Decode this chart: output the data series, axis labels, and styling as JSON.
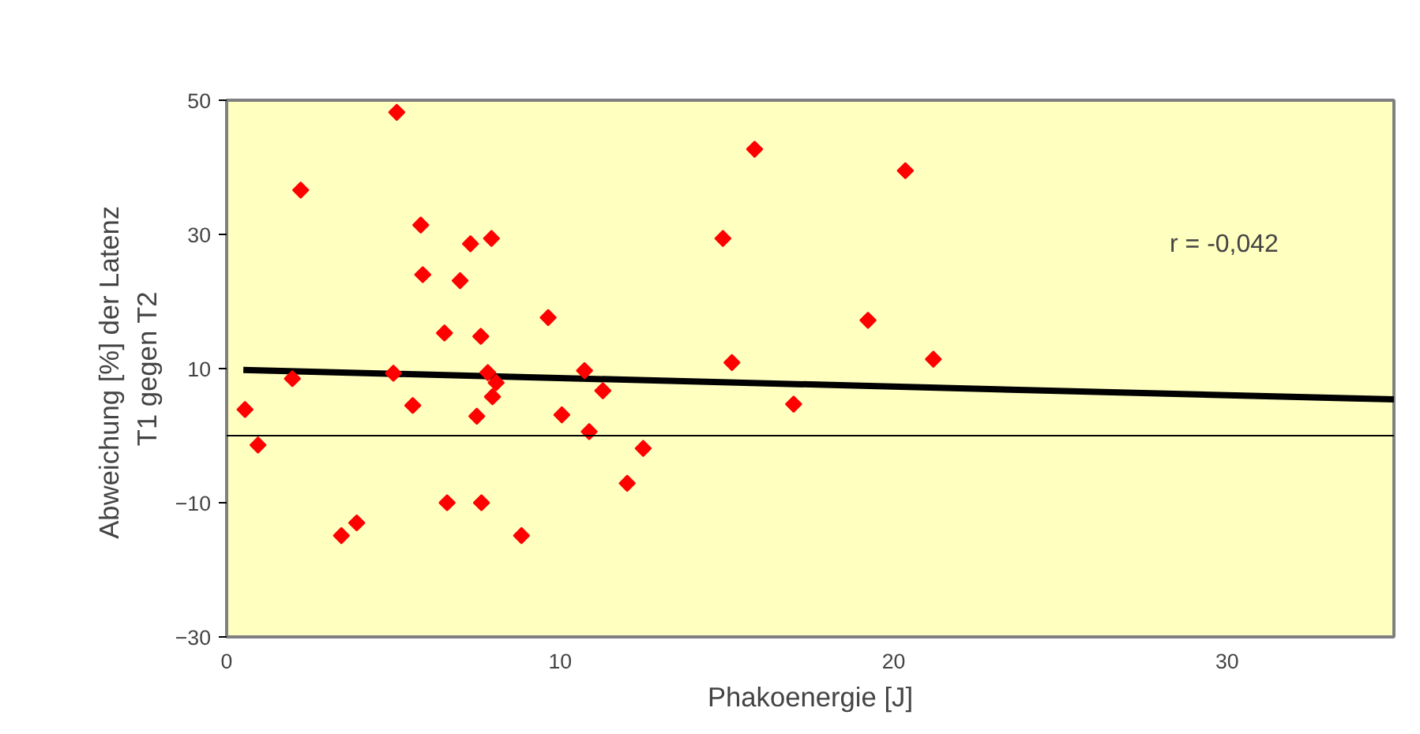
{
  "chart_data": {
    "type": "scatter",
    "xlabel": "Phakoenergie [J]",
    "ylabel": "Abweichung [%] der  Latenz\nT1 gegen T2",
    "annotations": [
      "r = -0,042"
    ],
    "xlim": [
      0,
      35
    ],
    "ylim": [
      -30,
      50
    ],
    "xticks": [
      0,
      10,
      20,
      30
    ],
    "yticks": [
      -30,
      -10,
      10,
      30,
      50
    ],
    "grid": false,
    "ref_lines": [
      {
        "axis": "y",
        "value": 0,
        "color": "#000000"
      }
    ],
    "series": [
      {
        "color": "#ff0000",
        "marker": "diamond",
        "x": [
          0.55,
          0.94,
          1.97,
          2.22,
          3.44,
          3.9,
          5.1,
          5.0,
          5.58,
          5.82,
          5.88,
          6.53,
          6.61,
          7.0,
          7.31,
          7.62,
          7.64,
          7.5,
          7.94,
          7.83,
          8.08,
          7.97,
          8.84,
          9.64,
          10.05,
          10.73,
          10.87,
          11.28,
          12.01,
          12.49,
          15.83,
          20.35,
          14.88,
          19.23,
          15.15,
          21.19,
          17.0
        ],
        "values": [
          3.9,
          -1.4,
          8.5,
          36.6,
          -14.9,
          -13.0,
          48.2,
          9.3,
          4.5,
          31.4,
          24.0,
          15.3,
          -10.0,
          23.1,
          28.6,
          14.8,
          -10.0,
          2.9,
          29.4,
          9.4,
          7.9,
          5.8,
          -14.9,
          17.6,
          3.1,
          9.7,
          0.6,
          6.7,
          -7.1,
          -1.9,
          42.7,
          39.5,
          29.4,
          17.2,
          10.9,
          11.4,
          4.7
        ]
      },
      {
        "type": "line",
        "color": "#000000",
        "x": [
          0.5,
          35
        ],
        "values": [
          9.8,
          5.4
        ]
      }
    ]
  }
}
